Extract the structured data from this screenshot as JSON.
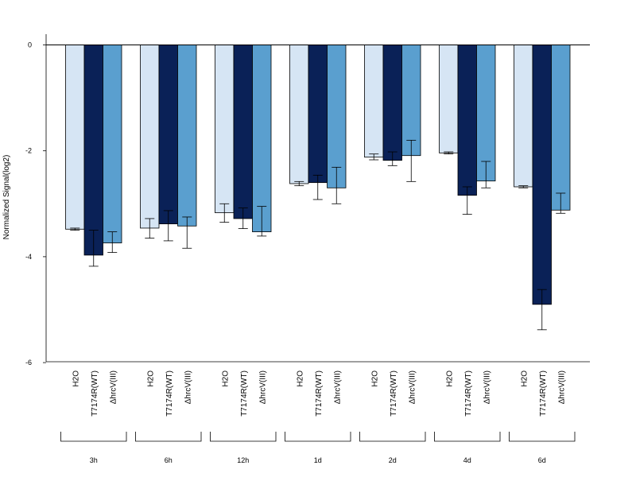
{
  "chart_data": {
    "type": "bar",
    "ylabel": "Normalized Signal(log2)",
    "ylim": [
      -6,
      0.2
    ],
    "yticks": [
      0,
      -2,
      -4,
      -6
    ],
    "grid": false,
    "legend": "none",
    "groups": [
      "3h",
      "6h",
      "12h",
      "1d",
      "2d",
      "4d",
      "6d"
    ],
    "series": [
      {
        "name": "H2O",
        "color": "#d6e5f4",
        "values": [
          -3.48,
          -3.46,
          -3.17,
          -2.62,
          -2.12,
          -2.04,
          -2.68
        ],
        "err_low": [
          -3.5,
          -3.65,
          -3.35,
          -2.66,
          -2.17,
          -2.06,
          -2.7
        ],
        "err_high": [
          -3.46,
          -3.28,
          -3.0,
          -2.58,
          -2.06,
          -2.02,
          -2.66
        ]
      },
      {
        "name": "T7174R(WT)",
        "color": "#0a2157",
        "values": [
          -3.97,
          -3.38,
          -3.28,
          -2.6,
          -2.18,
          -2.84,
          -4.9
        ],
        "err_low": [
          -4.18,
          -3.7,
          -3.47,
          -2.92,
          -2.28,
          -3.2,
          -5.38
        ],
        "err_high": [
          -3.5,
          -3.13,
          -3.08,
          -2.46,
          -2.02,
          -2.68,
          -4.62
        ]
      },
      {
        "name": "ΔhrcV(III)",
        "color": "#5a9fcf",
        "values": [
          -3.74,
          -3.42,
          -3.53,
          -2.7,
          -2.09,
          -2.57,
          -3.12
        ],
        "err_low": [
          -3.92,
          -3.84,
          -3.61,
          -3.0,
          -2.58,
          -2.7,
          -3.18
        ],
        "err_high": [
          -3.53,
          -3.25,
          -3.05,
          -2.31,
          -1.8,
          -2.2,
          -2.8
        ]
      }
    ]
  }
}
